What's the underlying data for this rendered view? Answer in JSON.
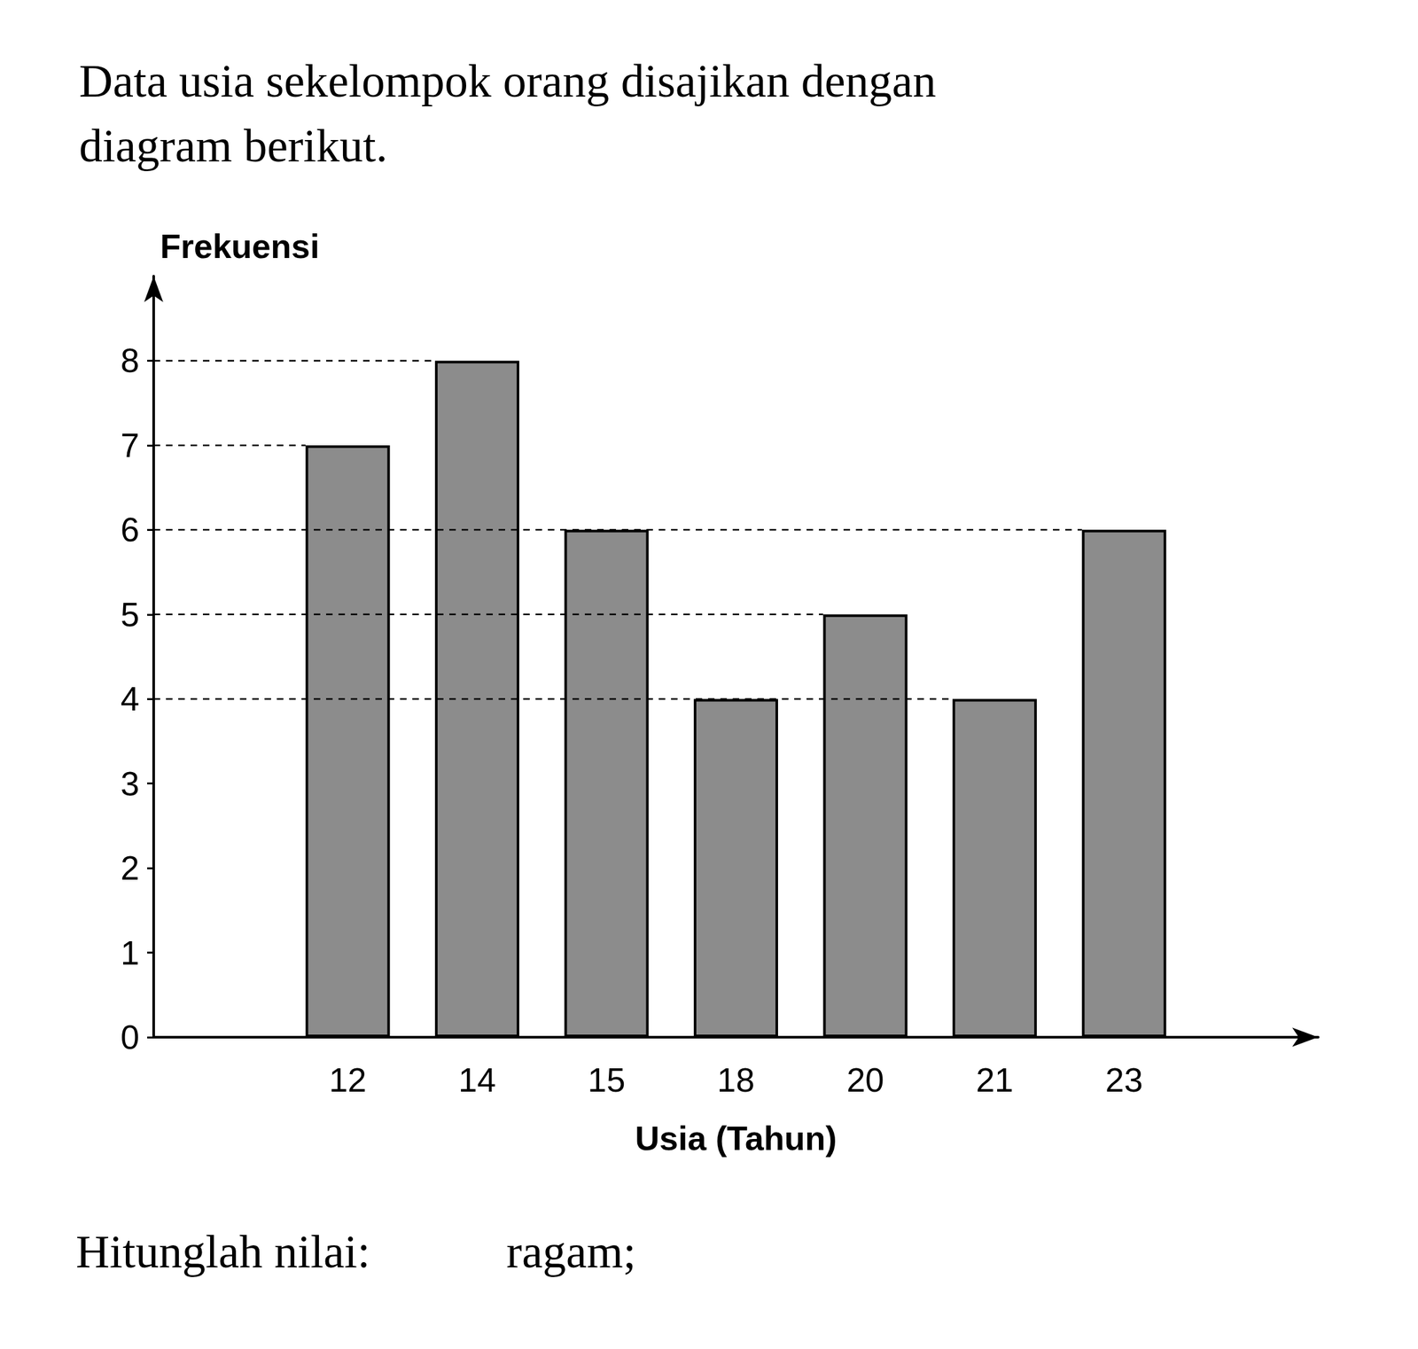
{
  "chart_data": {
    "type": "bar",
    "title": "Data usia sekelompok orang disajikan dengan diagram berikut.",
    "annotations": [
      "Hitunglah nilai:",
      "ragam;"
    ],
    "x_label": "Usia (Tahun)",
    "y_label": "Frekuensi",
    "categories": [
      "12",
      "14",
      "15",
      "18",
      "20",
      "21",
      "23"
    ],
    "values": [
      7,
      8,
      6,
      4,
      5,
      4,
      6
    ],
    "color": "#8c8c8c",
    "ylim": [
      0,
      9
    ],
    "yticks": [
      0,
      1,
      2,
      3,
      4,
      5,
      6,
      7,
      8
    ],
    "grid": true
  }
}
